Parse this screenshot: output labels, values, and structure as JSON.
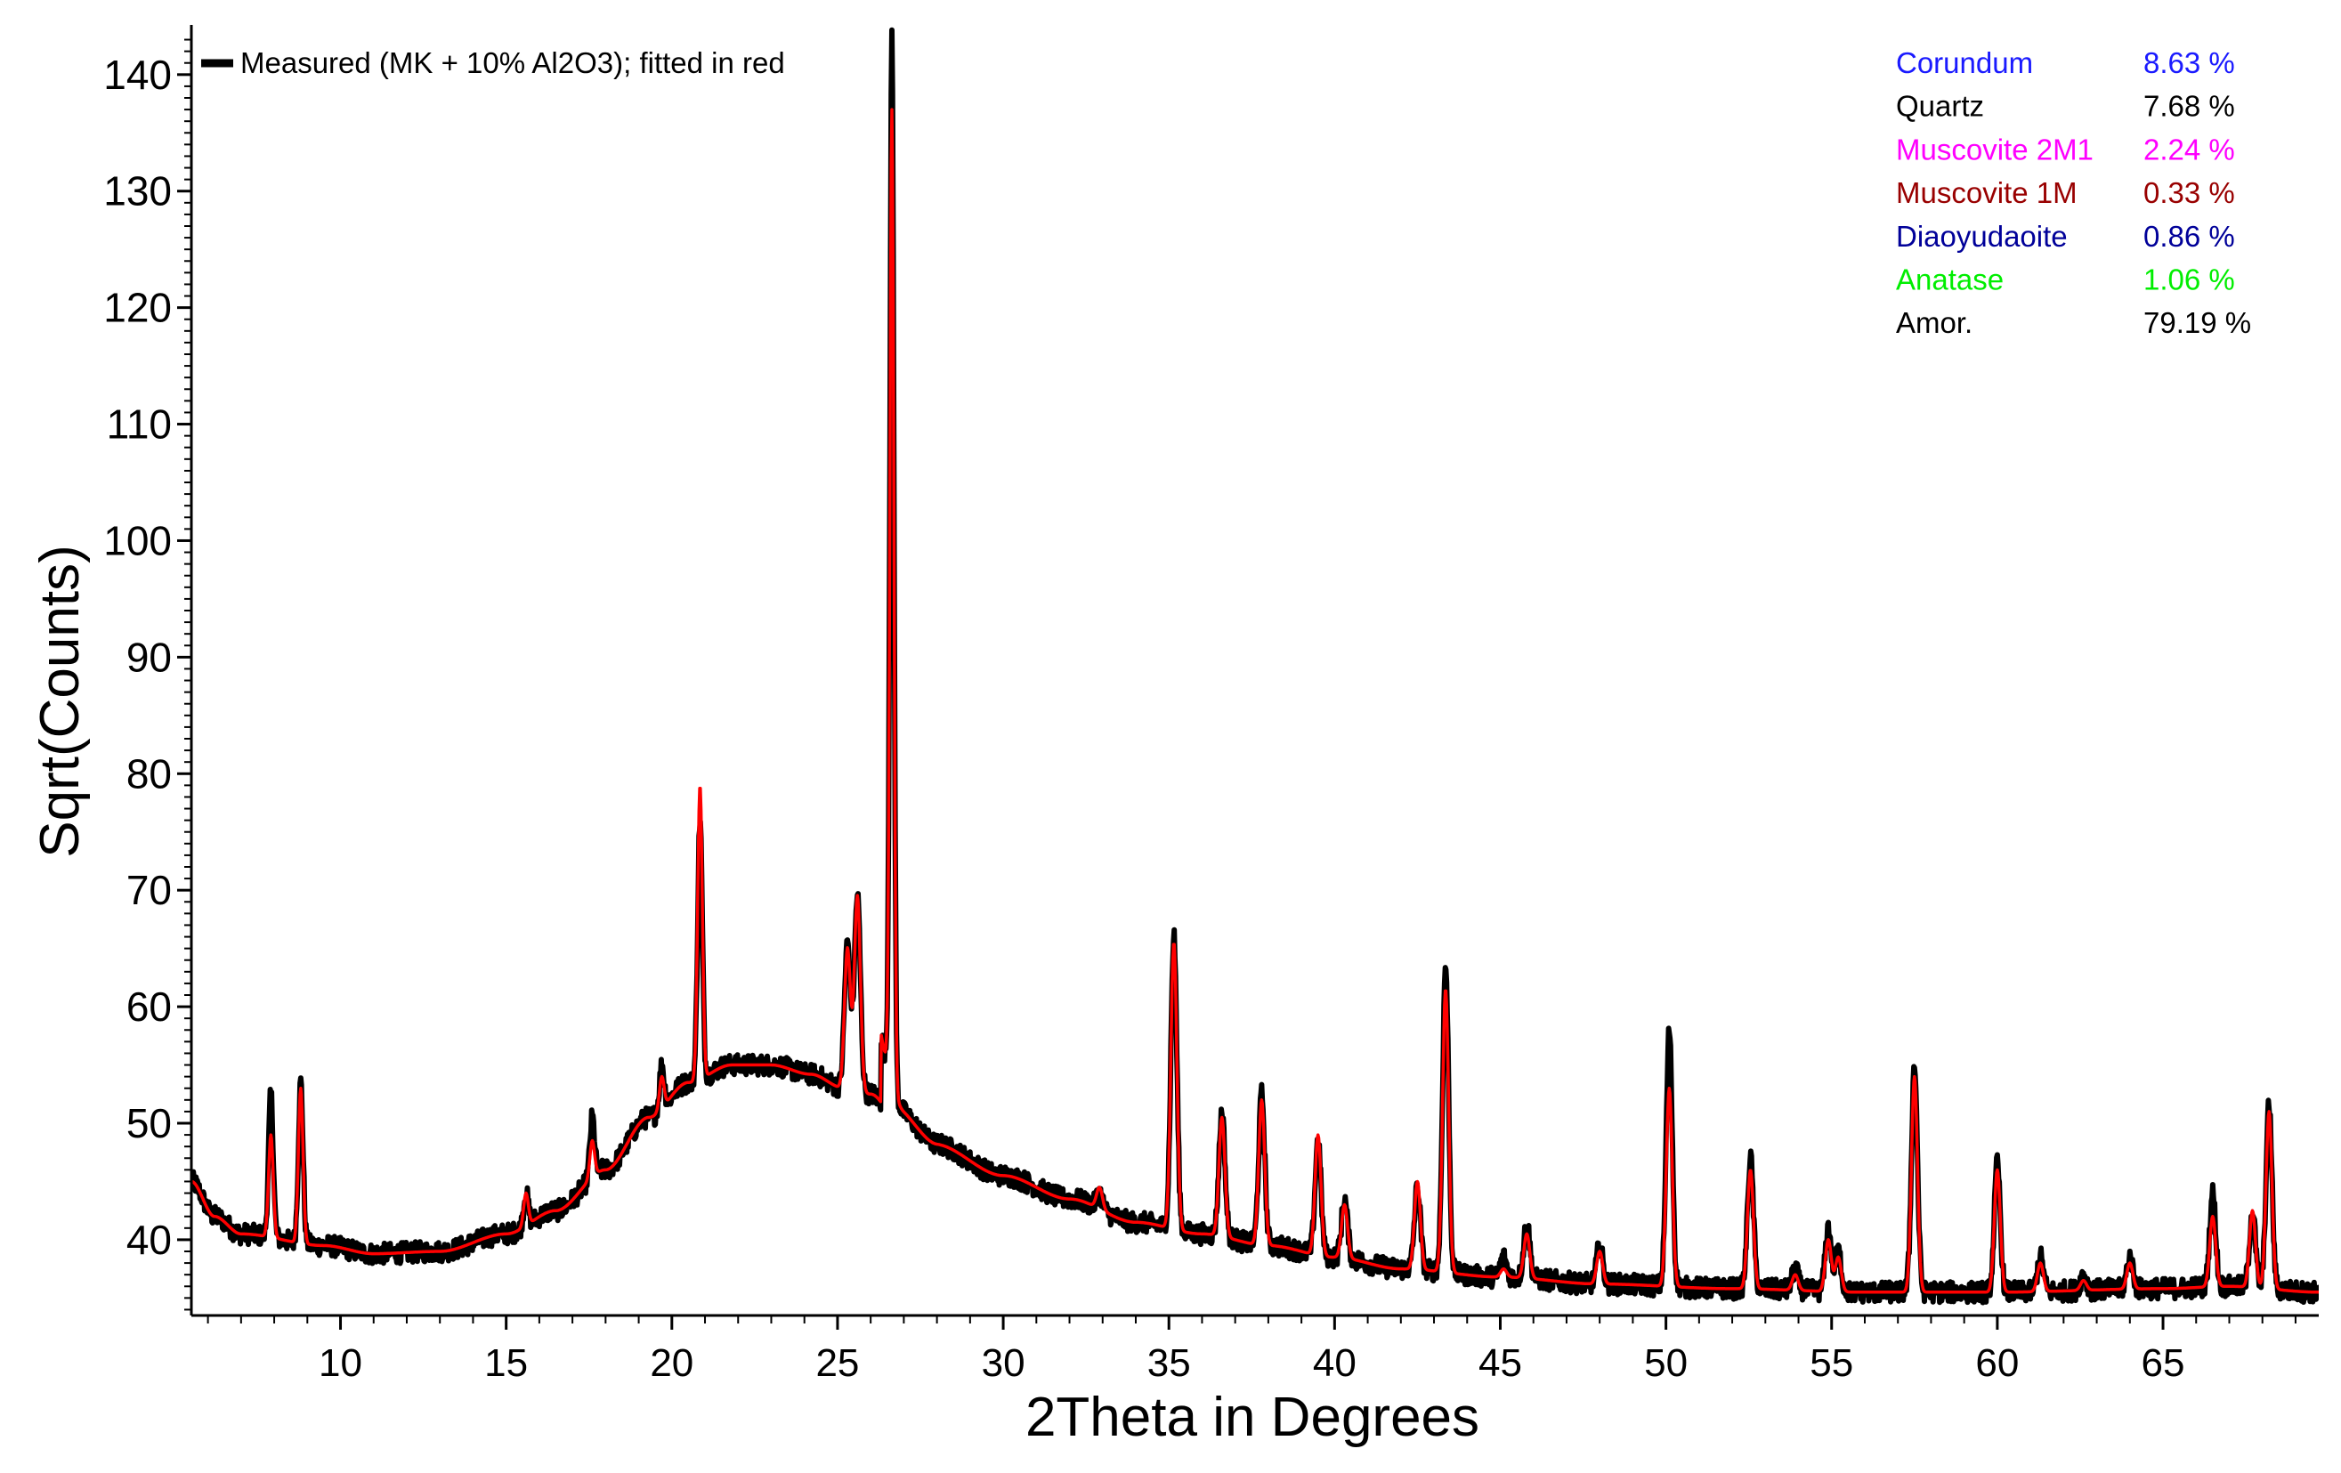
{
  "chart_data": {
    "type": "line",
    "title": "",
    "xlabel": "2Theta in Degrees",
    "ylabel": "Sqrt(Counts)",
    "xlim": [
      5.5,
      69.7
    ],
    "ylim": [
      33.5,
      143.5
    ],
    "xticks": [
      10,
      15,
      20,
      25,
      30,
      35,
      40,
      45,
      50,
      55,
      60,
      65
    ],
    "yticks": [
      40,
      50,
      60,
      70,
      80,
      90,
      100,
      110,
      120,
      130,
      140
    ],
    "grid": false,
    "legend": {
      "position": "top-left",
      "label": "Measured (MK + 10% Al2O3); fitted in red"
    },
    "colors": {
      "measured": "#000000",
      "fitted": "#ff0000",
      "axis": "#000000"
    },
    "series": [
      {
        "name": "Measured (MK + 10% Al2O3); fitted in red",
        "color": "#000000",
        "peaks": [
          {
            "x": 7.9,
            "y": 52.5
          },
          {
            "x": 8.8,
            "y": 53.5
          },
          {
            "x": 15.6,
            "y": 44
          },
          {
            "x": 17.6,
            "y": 50.5
          },
          {
            "x": 19.7,
            "y": 55
          },
          {
            "x": 20.85,
            "y": 76
          },
          {
            "x": 25.3,
            "y": 65.5
          },
          {
            "x": 25.6,
            "y": 69.5
          },
          {
            "x": 26.64,
            "y": 143
          },
          {
            "x": 32.9,
            "y": 44
          },
          {
            "x": 35.15,
            "y": 66
          },
          {
            "x": 36.6,
            "y": 51
          },
          {
            "x": 37.8,
            "y": 52.5
          },
          {
            "x": 39.5,
            "y": 48.5
          },
          {
            "x": 40.3,
            "y": 43.5
          },
          {
            "x": 42.5,
            "y": 44.5
          },
          {
            "x": 43.35,
            "y": 63.5
          },
          {
            "x": 45.1,
            "y": 38.5
          },
          {
            "x": 45.8,
            "y": 41.5
          },
          {
            "x": 48.0,
            "y": 39.5
          },
          {
            "x": 50.1,
            "y": 58
          },
          {
            "x": 52.55,
            "y": 47
          },
          {
            "x": 53.9,
            "y": 37.5
          },
          {
            "x": 54.9,
            "y": 41
          },
          {
            "x": 55.2,
            "y": 39
          },
          {
            "x": 57.5,
            "y": 55
          },
          {
            "x": 60.0,
            "y": 46.5
          },
          {
            "x": 61.3,
            "y": 38.5
          },
          {
            "x": 62.6,
            "y": 37
          },
          {
            "x": 64.0,
            "y": 38.5
          },
          {
            "x": 66.5,
            "y": 44
          },
          {
            "x": 67.7,
            "y": 42.5
          },
          {
            "x": 68.2,
            "y": 51.5
          }
        ]
      },
      {
        "name": "",
        "color": "#ff0000",
        "peaks": [
          {
            "x": 7.9,
            "y": 49
          },
          {
            "x": 8.8,
            "y": 53
          },
          {
            "x": 15.6,
            "y": 44
          },
          {
            "x": 17.6,
            "y": 48.5
          },
          {
            "x": 19.7,
            "y": 54
          },
          {
            "x": 20.85,
            "y": 79
          },
          {
            "x": 25.3,
            "y": 65
          },
          {
            "x": 25.6,
            "y": 69.5
          },
          {
            "x": 26.64,
            "y": 137
          },
          {
            "x": 32.9,
            "y": 44.5
          },
          {
            "x": 35.15,
            "y": 65.5
          },
          {
            "x": 36.6,
            "y": 50.5
          },
          {
            "x": 37.8,
            "y": 52
          },
          {
            "x": 39.5,
            "y": 49
          },
          {
            "x": 40.3,
            "y": 43
          },
          {
            "x": 42.5,
            "y": 45
          },
          {
            "x": 43.35,
            "y": 61.5
          },
          {
            "x": 45.1,
            "y": 37.5
          },
          {
            "x": 45.8,
            "y": 40.5
          },
          {
            "x": 48.0,
            "y": 39
          },
          {
            "x": 50.1,
            "y": 53
          },
          {
            "x": 52.55,
            "y": 46
          },
          {
            "x": 53.9,
            "y": 37
          },
          {
            "x": 54.9,
            "y": 40
          },
          {
            "x": 55.2,
            "y": 38.5
          },
          {
            "x": 57.5,
            "y": 54
          },
          {
            "x": 60.0,
            "y": 46
          },
          {
            "x": 61.3,
            "y": 38
          },
          {
            "x": 62.6,
            "y": 36.5
          },
          {
            "x": 64.0,
            "y": 38
          },
          {
            "x": 66.5,
            "y": 42
          },
          {
            "x": 67.7,
            "y": 42.5
          },
          {
            "x": 68.2,
            "y": 51
          }
        ]
      }
    ],
    "background_curve": [
      {
        "x": 5.5,
        "y": 45
      },
      {
        "x": 6.2,
        "y": 42
      },
      {
        "x": 7.0,
        "y": 40.5
      },
      {
        "x": 9.5,
        "y": 39.5
      },
      {
        "x": 11.0,
        "y": 38.8
      },
      {
        "x": 13.0,
        "y": 39.0
      },
      {
        "x": 15.0,
        "y": 40.5
      },
      {
        "x": 16.5,
        "y": 42.5
      },
      {
        "x": 18.0,
        "y": 46.0
      },
      {
        "x": 19.3,
        "y": 50.5
      },
      {
        "x": 20.5,
        "y": 53.5
      },
      {
        "x": 21.8,
        "y": 55.0
      },
      {
        "x": 23.0,
        "y": 55.0
      },
      {
        "x": 24.2,
        "y": 54.2
      },
      {
        "x": 25.2,
        "y": 53.0
      },
      {
        "x": 26.0,
        "y": 52.5
      },
      {
        "x": 27.0,
        "y": 49.5
      },
      {
        "x": 28.0,
        "y": 48.0
      },
      {
        "x": 30.0,
        "y": 45.5
      },
      {
        "x": 32.0,
        "y": 43.5
      },
      {
        "x": 34.0,
        "y": 41.5
      },
      {
        "x": 36.0,
        "y": 40.5
      },
      {
        "x": 38.0,
        "y": 39.5
      },
      {
        "x": 40.0,
        "y": 38.5
      },
      {
        "x": 42.0,
        "y": 37.5
      },
      {
        "x": 45.0,
        "y": 36.8
      },
      {
        "x": 48.0,
        "y": 36.2
      },
      {
        "x": 52.0,
        "y": 35.8
      },
      {
        "x": 56.0,
        "y": 35.5
      },
      {
        "x": 60.0,
        "y": 35.5
      },
      {
        "x": 65.0,
        "y": 35.8
      },
      {
        "x": 67.0,
        "y": 36.0
      },
      {
        "x": 69.7,
        "y": 35.5
      }
    ],
    "annotations": [
      {
        "phase": "Corundum",
        "value": "8.63 %",
        "color": "#1a1aff"
      },
      {
        "phase": "Quartz",
        "value": "7.68 %",
        "color": "#000000"
      },
      {
        "phase": "Muscovite 2M1",
        "value": "2.24 %",
        "color": "#ff00ff"
      },
      {
        "phase": "Muscovite 1M",
        "value": "0.33 %",
        "color": "#990000"
      },
      {
        "phase": "Diaoyudaoite",
        "value": "0.86 %",
        "color": "#000099"
      },
      {
        "phase": "Anatase",
        "value": "1.06 %",
        "color": "#00ee00"
      },
      {
        "phase": "Amor.",
        "value": "79.19 %",
        "color": "#000000"
      }
    ]
  }
}
